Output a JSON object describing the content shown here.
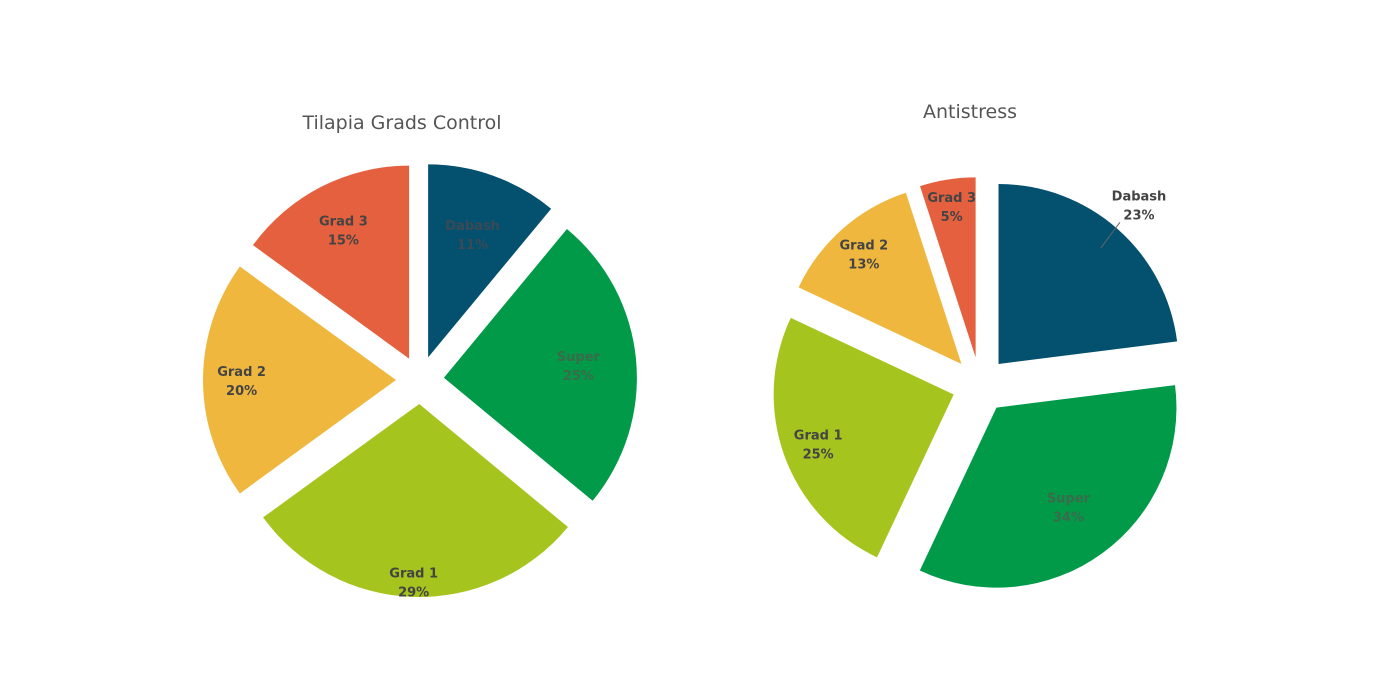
{
  "chart_data": [
    {
      "type": "pie",
      "title": "Tilapia Grads Control",
      "slices": [
        {
          "label": "Dabash",
          "value": 11,
          "value_label": "11%",
          "color": "#03506f"
        },
        {
          "label": "Super",
          "value": 25,
          "value_label": "25%",
          "color": "#009a49"
        },
        {
          "label": "Grad 1",
          "value": 29,
          "value_label": "29%",
          "color": "#a6c41e"
        },
        {
          "label": "Grad 2",
          "value": 20,
          "value_label": "20%",
          "color": "#f0b73f"
        },
        {
          "label": "Grad 3",
          "value": 15,
          "value_label": "15%",
          "color": "#e4603e"
        }
      ],
      "exploded": true
    },
    {
      "type": "pie",
      "title": "Antistress",
      "slices": [
        {
          "label": "Dabash",
          "value": 23,
          "value_label": "23%",
          "color": "#03506f"
        },
        {
          "label": "Super",
          "value": 34,
          "value_label": "34%",
          "color": "#009a49"
        },
        {
          "label": "Grad 1",
          "value": 25,
          "value_label": "25%",
          "color": "#a6c41e"
        },
        {
          "label": "Grad 2",
          "value": 13,
          "value_label": "13%",
          "color": "#f0b73f"
        },
        {
          "label": "Grad 3",
          "value": 5,
          "value_label": "5%",
          "color": "#e4603e"
        }
      ],
      "exploded": true
    }
  ]
}
